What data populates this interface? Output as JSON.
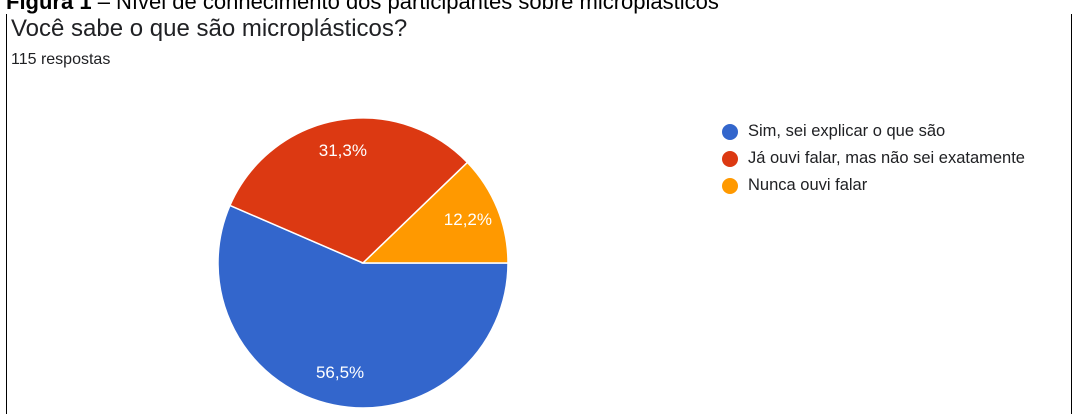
{
  "figure_caption": {
    "prefix": "Figura 1",
    "text": " – Nível de conhecimento dos participantes sobre microplásticos"
  },
  "question": "Você sabe o que são microplásticos?",
  "responses": "115 respostas",
  "chart_data": {
    "type": "pie",
    "title": "Você sabe o que são microplásticos?",
    "total_responses": 115,
    "categories": [
      "Sim, sei explicar o que são",
      "Já ouvi falar, mas não sei exatamente",
      "Nunca ouvi falar"
    ],
    "values": [
      56.5,
      31.3,
      12.2
    ],
    "value_labels": [
      "56,5%",
      "31,3%",
      "12,2%"
    ],
    "colors": [
      "#3366cc",
      "#dc3912",
      "#ff9900"
    ],
    "legend_placement": "right"
  }
}
